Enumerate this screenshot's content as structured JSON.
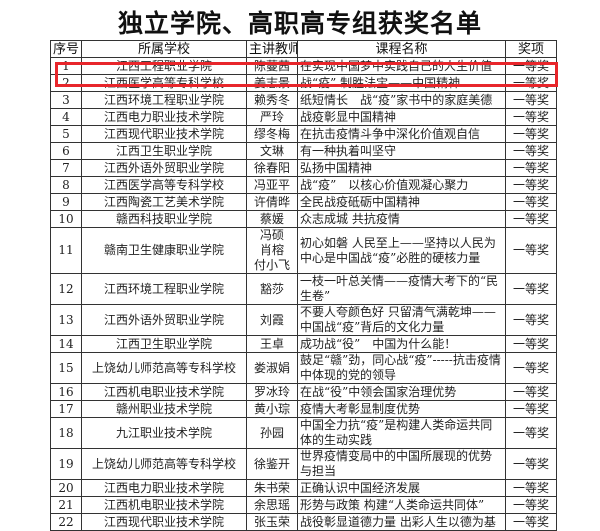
{
  "title": "独立学院、高职高专组获奖名单",
  "columns": [
    "序号",
    "所属学校",
    "主讲教师",
    "课程名称",
    "奖项"
  ],
  "highlight_color": "#e8262b",
  "highlighted_row": 1,
  "rows": [
    {
      "no": "1",
      "school": "江西工程职业学院",
      "teacher": "陈蔓茜",
      "course": "在实现中国梦中实践自己的人生价值",
      "award": "一等奖"
    },
    {
      "no": "2",
      "school": "江西医学高等专科学校",
      "teacher": "姜志景",
      "course": "战“疫” 制胜法宝——中国精神",
      "award": "一等奖"
    },
    {
      "no": "3",
      "school": "江西环境工程职业学院",
      "teacher": "赖秀冬",
      "course": "纸短情长　战“疫”家书中的家庭美德",
      "award": "一等奖"
    },
    {
      "no": "4",
      "school": "江西电力职业技术学院",
      "teacher": "严玲",
      "course": "战疫彰显中国精神",
      "award": "一等奖"
    },
    {
      "no": "5",
      "school": "江西现代职业技术学院",
      "teacher": "缪冬梅",
      "course": "在抗击疫情斗争中深化价值观自信",
      "award": "一等奖"
    },
    {
      "no": "6",
      "school": "江西卫生职业学院",
      "teacher": "文琳",
      "course": "有一种执着叫坚守",
      "award": "一等奖"
    },
    {
      "no": "7",
      "school": "江西外语外贸职业学院",
      "teacher": "徐春阳",
      "course": "弘扬中国精神",
      "award": "一等奖"
    },
    {
      "no": "8",
      "school": "江西医学高等专科学校",
      "teacher": "冯亚平",
      "course": "战“疫”　以核心价值观凝心聚力",
      "award": "一等奖"
    },
    {
      "no": "9",
      "school": "江西陶瓷工艺美术学院",
      "teacher": "许倩晔",
      "course": "全民战疫砥砺中国精神",
      "award": "一等奖"
    },
    {
      "no": "10",
      "school": "赣西科技职业学院",
      "teacher": "蔡媛",
      "course": "众志成城 共抗疫情",
      "award": "一等奖"
    },
    {
      "no": "11",
      "school": "赣南卫生健康职业学院",
      "teacher": "冯硕\n肖榕\n付小飞",
      "course": "初心如磐 人民至上——坚持以人民为中心是中国战“疫”必胜的硬核力量",
      "award": "一等奖",
      "lines": 3
    },
    {
      "no": "12",
      "school": "江西环境工程职业学院",
      "teacher": "豁莎",
      "course": "一枝一叶总关情——疫情大考下的“民生卷”",
      "award": "一等奖"
    },
    {
      "no": "13",
      "school": "江西外语外贸职业学院",
      "teacher": "刘霞",
      "course": "不要人夸颜色好 只留清气满乾坤——中国战“疫”背后的文化力量",
      "award": "一等奖",
      "lines": 2
    },
    {
      "no": "14",
      "school": "江西卫生职业学院",
      "teacher": "王卓",
      "course": "成功战“役”　中国为什么能！",
      "award": "一等奖"
    },
    {
      "no": "15",
      "school": "上饶幼儿师范高等专科学校",
      "teacher": "娄淑娟",
      "course": "鼓足“赣”劲，同心战“疫”-----抗击疫情中体现的党的领导",
      "award": "一等奖",
      "lines": 2
    },
    {
      "no": "16",
      "school": "江西机电职业技术学院",
      "teacher": "罗冰玲",
      "course": "在战“役”中领会国家治理优势",
      "award": "一等奖"
    },
    {
      "no": "17",
      "school": "赣州职业技术学院",
      "teacher": "黄小琮",
      "course": "疫情大考彰显制度优势",
      "award": "一等奖"
    },
    {
      "no": "18",
      "school": "九江职业技术学院",
      "teacher": "孙园",
      "course": "中国全力抗“疫”是构建人类命运共同体的生动实践",
      "award": "一等奖",
      "lines": 2
    },
    {
      "no": "19",
      "school": "上饶幼儿师范高等专科学校",
      "teacher": "徐鉴开",
      "course": "世界疫情变局中的中国所展现的优势与担当",
      "award": "一等奖"
    },
    {
      "no": "20",
      "school": "江西电力职业技术学院",
      "teacher": "朱书荣",
      "course": "正确认识中国经济发展",
      "award": "一等奖"
    },
    {
      "no": "21",
      "school": "江西机电职业技术学院",
      "teacher": "余思瑶",
      "course": "形势与政策 构建“人类命运共同体”",
      "award": "一等奖"
    },
    {
      "no": "22",
      "school": "江西现代职业技术学院",
      "teacher": "张玉荣",
      "course": "战役彰显道德力量 出彩人生以德为基",
      "award": "一等奖"
    }
  ]
}
